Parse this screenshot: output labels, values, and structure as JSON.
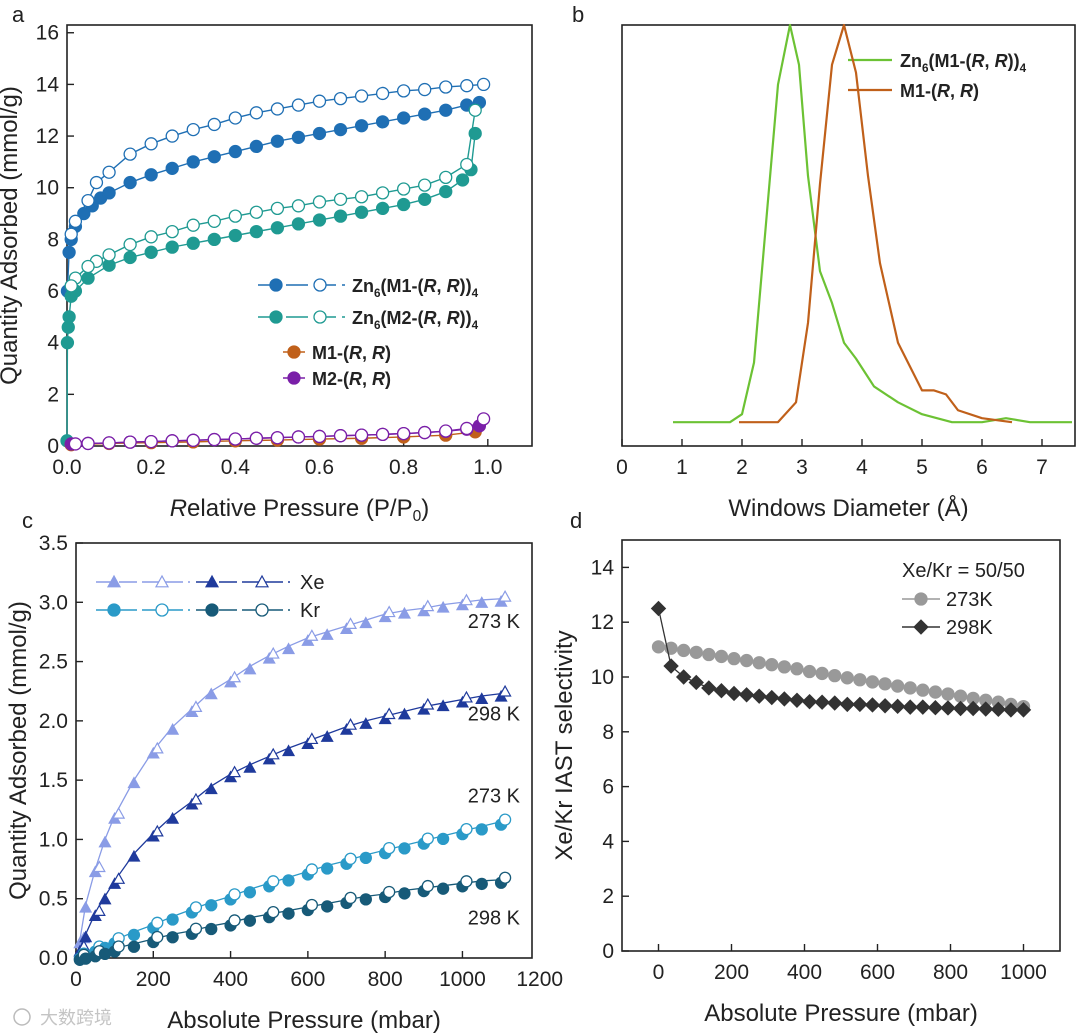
{
  "watermark": "大数跨境",
  "colors": {
    "blue": "#1f6fb4",
    "teal": "#1f9a92",
    "orange": "#c0601a",
    "purple": "#7a1fa8",
    "green": "#6cc234",
    "brown": "#c0601a",
    "xe273": "#8a9ce6",
    "xe298": "#1f3a9c",
    "kr273": "#2a9ac8",
    "kr298": "#175a78",
    "g273": "#999999",
    "g298": "#333333"
  },
  "chart_data": [
    {
      "panel": "a",
      "type": "scatter",
      "xlabel": "Relative Pressure (P/P0)",
      "ylabel": "Quantity Adsorbed (mmol/g)",
      "xlim": [
        0,
        1.105
      ],
      "ylim": [
        0,
        16.3
      ],
      "xticks": [
        "0.0",
        "0.2",
        "0.4",
        "0.6",
        "0.8",
        "1.0"
      ],
      "xtick_values": [
        0,
        0.2,
        0.4,
        0.6,
        0.8,
        1.0
      ],
      "yticks": [
        "0",
        "2",
        "4",
        "6",
        "8",
        "10",
        "12",
        "14",
        "16"
      ],
      "ytick_values": [
        0,
        2,
        4,
        6,
        8,
        10,
        12,
        14,
        16
      ],
      "legend": "center-right",
      "series": [
        {
          "name": "Zn6(M1-(R, R))4",
          "color": "blue",
          "kind": "adsorption",
          "x": [
            0.001,
            0.005,
            0.01,
            0.02,
            0.04,
            0.06,
            0.08,
            0.1,
            0.15,
            0.2,
            0.25,
            0.3,
            0.35,
            0.4,
            0.45,
            0.5,
            0.55,
            0.6,
            0.65,
            0.7,
            0.75,
            0.8,
            0.85,
            0.9,
            0.95,
            0.98
          ],
          "y": [
            6.0,
            7.5,
            8.0,
            8.5,
            9.0,
            9.3,
            9.6,
            9.8,
            10.2,
            10.5,
            10.75,
            11.0,
            11.2,
            11.4,
            11.6,
            11.8,
            11.95,
            12.1,
            12.25,
            12.4,
            12.55,
            12.7,
            12.85,
            13.0,
            13.2,
            13.3
          ]
        },
        {
          "name": "Zn6(M1-(R, R))4",
          "color": "blue",
          "kind": "desorption",
          "x": [
            0.99,
            0.95,
            0.9,
            0.85,
            0.8,
            0.75,
            0.7,
            0.65,
            0.6,
            0.55,
            0.5,
            0.45,
            0.4,
            0.35,
            0.3,
            0.25,
            0.2,
            0.15,
            0.1,
            0.07,
            0.05,
            0.02,
            0.01
          ],
          "y": [
            14.0,
            13.95,
            13.9,
            13.8,
            13.75,
            13.65,
            13.55,
            13.45,
            13.35,
            13.2,
            13.05,
            12.9,
            12.7,
            12.45,
            12.25,
            12.0,
            11.7,
            11.3,
            10.6,
            10.2,
            9.5,
            8.7,
            8.2
          ]
        },
        {
          "name": "Zn6(M2-(R, R))4",
          "color": "teal",
          "kind": "adsorption",
          "x": [
            0.0,
            0.001,
            0.003,
            0.005,
            0.01,
            0.02,
            0.05,
            0.1,
            0.15,
            0.2,
            0.25,
            0.3,
            0.35,
            0.4,
            0.45,
            0.5,
            0.55,
            0.6,
            0.65,
            0.7,
            0.75,
            0.8,
            0.85,
            0.9,
            0.94,
            0.96,
            0.97
          ],
          "y": [
            0.2,
            4.0,
            4.6,
            5.0,
            5.8,
            6.0,
            6.5,
            7.0,
            7.3,
            7.5,
            7.7,
            7.85,
            8.0,
            8.15,
            8.3,
            8.45,
            8.6,
            8.75,
            8.9,
            9.05,
            9.2,
            9.35,
            9.55,
            9.85,
            10.3,
            10.7,
            12.1
          ]
        },
        {
          "name": "Zn6(M2-(R, R))4",
          "color": "teal",
          "kind": "desorption",
          "x": [
            0.97,
            0.95,
            0.9,
            0.85,
            0.8,
            0.75,
            0.7,
            0.65,
            0.6,
            0.55,
            0.5,
            0.45,
            0.4,
            0.35,
            0.3,
            0.25,
            0.2,
            0.15,
            0.1,
            0.07,
            0.05,
            0.02,
            0.01
          ],
          "y": [
            13.0,
            10.9,
            10.4,
            10.1,
            9.95,
            9.8,
            9.65,
            9.55,
            9.45,
            9.3,
            9.2,
            9.05,
            8.9,
            8.7,
            8.55,
            8.3,
            8.1,
            7.8,
            7.4,
            7.15,
            6.95,
            6.5,
            6.2
          ]
        },
        {
          "name": "M1-(R, R)",
          "color": "orange",
          "kind": "adsorption",
          "x": [
            0.01,
            0.1,
            0.2,
            0.3,
            0.4,
            0.5,
            0.6,
            0.7,
            0.8,
            0.9,
            0.97
          ],
          "y": [
            0.05,
            0.1,
            0.13,
            0.16,
            0.2,
            0.23,
            0.27,
            0.3,
            0.35,
            0.42,
            0.55
          ]
        },
        {
          "name": "M2-(R, R)",
          "color": "purple",
          "kind": "adsorption",
          "x": [
            0.01,
            0.05,
            0.1,
            0.15,
            0.2,
            0.25,
            0.3,
            0.35,
            0.4,
            0.45,
            0.5,
            0.55,
            0.6,
            0.65,
            0.7,
            0.75,
            0.8,
            0.85,
            0.9,
            0.95,
            0.98
          ],
          "y": [
            0.08,
            0.1,
            0.12,
            0.15,
            0.17,
            0.2,
            0.22,
            0.25,
            0.27,
            0.3,
            0.32,
            0.35,
            0.37,
            0.4,
            0.42,
            0.45,
            0.48,
            0.52,
            0.57,
            0.65,
            0.78
          ]
        },
        {
          "name": "M2-(R, R)",
          "color": "purple",
          "kind": "desorption",
          "x": [
            0.99,
            0.95,
            0.9,
            0.85,
            0.8,
            0.75,
            0.7,
            0.65,
            0.6,
            0.55,
            0.5,
            0.45,
            0.4,
            0.35,
            0.3,
            0.25,
            0.2,
            0.15,
            0.1,
            0.05,
            0.02
          ],
          "y": [
            1.05,
            0.68,
            0.58,
            0.52,
            0.48,
            0.45,
            0.42,
            0.4,
            0.37,
            0.35,
            0.32,
            0.3,
            0.27,
            0.25,
            0.22,
            0.2,
            0.17,
            0.15,
            0.12,
            0.1,
            0.08
          ]
        }
      ]
    },
    {
      "panel": "b",
      "type": "line",
      "xlabel": "Windows Diameter (Å)",
      "ylabel": "",
      "xlim": [
        0,
        7.55
      ],
      "ylim": [
        -0.06,
        1.0
      ],
      "xticks": [
        "0",
        "1",
        "2",
        "3",
        "4",
        "5",
        "6",
        "7"
      ],
      "xtick_values": [
        0,
        1,
        2,
        3,
        4,
        5,
        6,
        7
      ],
      "legend": "top-right",
      "series": [
        {
          "name": "Zn6(M1-(R, R))4",
          "color": "green",
          "x": [
            0.85,
            1.8,
            2.0,
            2.2,
            2.4,
            2.6,
            2.8,
            2.95,
            3.1,
            3.3,
            3.5,
            3.7,
            3.9,
            4.2,
            4.6,
            5.0,
            5.5,
            6.0,
            6.4,
            6.8,
            7.5
          ],
          "y": [
            0,
            0,
            0.02,
            0.15,
            0.5,
            0.85,
            1.0,
            0.9,
            0.62,
            0.38,
            0.3,
            0.2,
            0.16,
            0.09,
            0.05,
            0.02,
            0,
            0,
            0.01,
            0,
            0
          ]
        },
        {
          "name": "M1-(R, R)",
          "color": "brown",
          "x": [
            1.95,
            2.6,
            2.9,
            3.1,
            3.3,
            3.5,
            3.7,
            3.9,
            4.1,
            4.3,
            4.6,
            5.0,
            5.2,
            5.4,
            5.6,
            6.0,
            6.5
          ],
          "y": [
            0,
            0,
            0.05,
            0.25,
            0.6,
            0.9,
            1.0,
            0.88,
            0.62,
            0.4,
            0.2,
            0.08,
            0.08,
            0.07,
            0.03,
            0.01,
            0
          ]
        }
      ]
    },
    {
      "panel": "c",
      "type": "scatter",
      "xlabel": "Absolute Pressure (mbar)",
      "ylabel": "Quantity Adsorbed (mmol/g)",
      "xlim": [
        0,
        1180
      ],
      "ylim": [
        0,
        3.5
      ],
      "xticks": [
        "0",
        "200",
        "400",
        "600",
        "800",
        "1000",
        "1200"
      ],
      "xtick_values": [
        0,
        200,
        400,
        600,
        800,
        1000,
        1200
      ],
      "yticks": [
        "0.0",
        "0.5",
        "1.0",
        "1.5",
        "2.0",
        "2.5",
        "3.0",
        "3.5"
      ],
      "ytick_values": [
        0,
        0.5,
        1,
        1.5,
        2,
        2.5,
        3,
        3.5
      ],
      "legend": "top-left",
      "legend_entries": [
        "Xe",
        "Kr"
      ],
      "x": [
        10,
        25,
        50,
        75,
        100,
        150,
        200,
        250,
        300,
        350,
        400,
        450,
        500,
        550,
        600,
        650,
        700,
        750,
        800,
        850,
        900,
        950,
        1000,
        1050,
        1100
      ],
      "series": [
        {
          "name": "Xe 273 K",
          "gas": "Xe",
          "label": "273 K",
          "label_y": 2.85,
          "color": "xe273",
          "marker": "triangle",
          "values": [
            0.15,
            0.45,
            0.75,
            1.0,
            1.2,
            1.5,
            1.75,
            1.95,
            2.1,
            2.25,
            2.35,
            2.46,
            2.55,
            2.63,
            2.7,
            2.75,
            2.8,
            2.85,
            2.9,
            2.93,
            2.95,
            2.98,
            3.0,
            3.02,
            3.03
          ]
        },
        {
          "name": "Xe 298 K",
          "gas": "Xe",
          "label": "298 K",
          "label_y": 2.07,
          "color": "xe298",
          "marker": "triangle",
          "values": [
            0.08,
            0.2,
            0.38,
            0.52,
            0.65,
            0.88,
            1.05,
            1.2,
            1.32,
            1.45,
            1.55,
            1.63,
            1.7,
            1.77,
            1.83,
            1.89,
            1.95,
            2.0,
            2.04,
            2.08,
            2.12,
            2.15,
            2.18,
            2.21,
            2.23
          ]
        },
        {
          "name": "Kr 273 K",
          "gas": "Kr",
          "label": "273 K",
          "label_y": 1.38,
          "color": "kr273",
          "marker": "circle",
          "values": [
            0.02,
            0.04,
            0.08,
            0.11,
            0.15,
            0.22,
            0.28,
            0.35,
            0.41,
            0.47,
            0.52,
            0.58,
            0.63,
            0.68,
            0.73,
            0.78,
            0.82,
            0.87,
            0.91,
            0.95,
            0.99,
            1.03,
            1.07,
            1.11,
            1.15
          ]
        },
        {
          "name": "Kr 298 K",
          "gas": "Kr",
          "label": "298 K",
          "label_y": 0.35,
          "color": "kr298",
          "marker": "circle",
          "values": [
            0.01,
            0.02,
            0.04,
            0.06,
            0.08,
            0.12,
            0.16,
            0.2,
            0.23,
            0.27,
            0.3,
            0.34,
            0.37,
            0.4,
            0.43,
            0.46,
            0.49,
            0.52,
            0.54,
            0.57,
            0.59,
            0.61,
            0.63,
            0.65,
            0.66
          ]
        }
      ]
    },
    {
      "panel": "d",
      "type": "scatter",
      "title": "Xe/Kr = 50/50",
      "xlabel": "Absolute Pressure (mbar)",
      "ylabel": "Xe/Kr IAST selectivity",
      "xlim": [
        -100,
        1100
      ],
      "ylim": [
        0,
        15
      ],
      "xticks": [
        "0",
        "200",
        "400",
        "600",
        "800",
        "1000"
      ],
      "xtick_values": [
        0,
        200,
        400,
        600,
        800,
        1000
      ],
      "yticks": [
        "0",
        "2",
        "4",
        "6",
        "8",
        "10",
        "12",
        "14"
      ],
      "ytick_values": [
        0,
        2,
        4,
        6,
        8,
        10,
        12,
        14
      ],
      "legend": "top-right",
      "x_range": [
        0,
        1000
      ],
      "n_points": 30,
      "series": [
        {
          "name": "273K",
          "color": "g273",
          "marker": "circle",
          "values": [
            11.1,
            11.05,
            10.97,
            10.9,
            10.82,
            10.75,
            10.67,
            10.6,
            10.52,
            10.45,
            10.37,
            10.3,
            10.2,
            10.13,
            10.05,
            9.97,
            9.9,
            9.82,
            9.75,
            9.67,
            9.6,
            9.52,
            9.45,
            9.38,
            9.3,
            9.22,
            9.15,
            9.08,
            9.0,
            8.92
          ]
        },
        {
          "name": "298K",
          "color": "g298",
          "marker": "diamond",
          "values": [
            12.5,
            10.4,
            10.0,
            9.8,
            9.6,
            9.5,
            9.4,
            9.35,
            9.3,
            9.25,
            9.2,
            9.15,
            9.1,
            9.08,
            9.05,
            9.0,
            9.0,
            8.98,
            8.95,
            8.93,
            8.9,
            8.9,
            8.88,
            8.87,
            8.85,
            8.85,
            8.83,
            8.82,
            8.8,
            8.8
          ]
        }
      ]
    }
  ]
}
